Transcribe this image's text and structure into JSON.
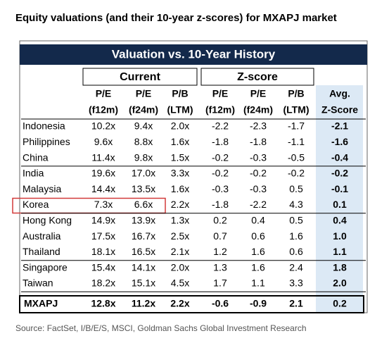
{
  "title": "Equity valuations (and their 10-year z-scores) for MXAPJ market",
  "table": {
    "banner": "Valuation vs. 10-Year History",
    "groups": [
      "Current",
      "Z-score"
    ],
    "header_rows": [
      [
        "P/E",
        "P/E",
        "P/B",
        "P/E",
        "P/E",
        "P/B",
        "Avg."
      ],
      [
        "(f12m)",
        "(f24m)",
        "(LTM)",
        "(f12m)",
        "(f24m)",
        "(LTM)",
        "Z-Score"
      ]
    ],
    "row_groups": [
      [
        {
          "name": "Indonesia",
          "cells": [
            "10.2x",
            "9.4x",
            "2.0x",
            "-2.2",
            "-2.3",
            "-1.7",
            "-2.1"
          ]
        },
        {
          "name": "Philippines",
          "cells": [
            "9.6x",
            "8.8x",
            "1.6x",
            "-1.8",
            "-1.8",
            "-1.1",
            "-1.6"
          ]
        },
        {
          "name": "China",
          "cells": [
            "11.4x",
            "9.8x",
            "1.5x",
            "-0.2",
            "-0.3",
            "-0.5",
            "-0.4"
          ]
        }
      ],
      [
        {
          "name": "India",
          "cells": [
            "19.6x",
            "17.0x",
            "3.3x",
            "-0.2",
            "-0.2",
            "-0.2",
            "-0.2"
          ]
        },
        {
          "name": "Malaysia",
          "cells": [
            "14.4x",
            "13.5x",
            "1.6x",
            "-0.3",
            "-0.3",
            "0.5",
            "-0.1"
          ]
        },
        {
          "name": "Korea",
          "cells": [
            "7.3x",
            "6.6x",
            "2.2x",
            "-1.8",
            "-2.2",
            "4.3",
            "0.1"
          ]
        }
      ],
      [
        {
          "name": "Hong Kong",
          "cells": [
            "14.9x",
            "13.9x",
            "1.3x",
            "0.2",
            "0.4",
            "0.5",
            "0.4"
          ]
        },
        {
          "name": "Australia",
          "cells": [
            "17.5x",
            "16.7x",
            "2.5x",
            "0.7",
            "0.6",
            "1.6",
            "1.0"
          ]
        },
        {
          "name": "Thailand",
          "cells": [
            "18.1x",
            "16.5x",
            "2.1x",
            "1.2",
            "1.6",
            "0.6",
            "1.1"
          ]
        }
      ],
      [
        {
          "name": "Singapore",
          "cells": [
            "15.4x",
            "14.1x",
            "2.0x",
            "1.3",
            "1.6",
            "2.4",
            "1.8"
          ]
        },
        {
          "name": "Taiwan",
          "cells": [
            "18.2x",
            "15.1x",
            "4.5x",
            "1.7",
            "1.1",
            "3.3",
            "2.0"
          ]
        }
      ]
    ],
    "total": {
      "name": "MXAPJ",
      "cells": [
        "12.8x",
        "11.2x",
        "2.2x",
        "-0.6",
        "-0.9",
        "2.1",
        "0.2"
      ]
    }
  },
  "source": "Source: FactSet, I/B/E/S, MSCI, Goldman Sachs Global Investment Research"
}
